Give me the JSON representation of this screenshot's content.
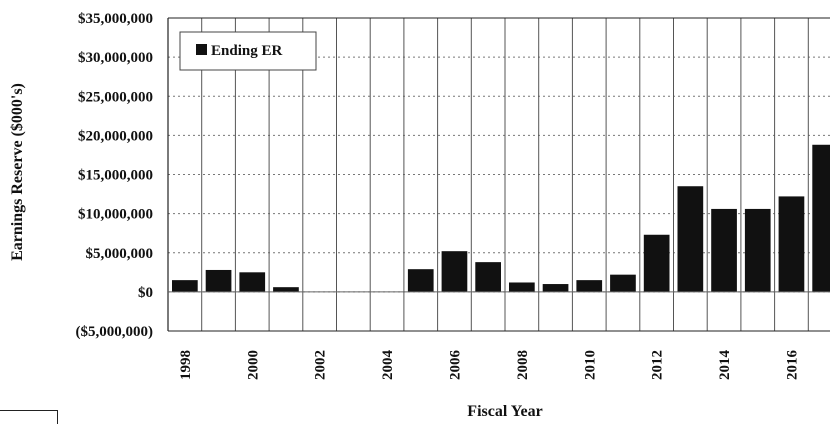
{
  "chart_data": {
    "type": "bar",
    "xlabel": "Fiscal Year",
    "ylabel": "Earnings Reserve ($000's)",
    "ylim": [
      -5000000,
      35000000
    ],
    "yticks": [
      35000000,
      30000000,
      25000000,
      20000000,
      15000000,
      10000000,
      5000000,
      0,
      -5000000
    ],
    "ytick_labels": [
      "$35,000,000",
      "$30,000,000",
      "$25,000,000",
      "$20,000,000",
      "$15,000,000",
      "$10,000,000",
      "$5,000,000",
      "$0",
      "($5,000,000)"
    ],
    "categories": [
      "1998",
      "1999",
      "2000",
      "2001",
      "2002",
      "2003",
      "2004",
      "2005",
      "2006",
      "2007",
      "2008",
      "2009",
      "2010",
      "2011",
      "2012",
      "2013",
      "2014",
      "2015",
      "2016",
      "2017"
    ],
    "xtick_labels": [
      "1998",
      "",
      "2000",
      "",
      "2002",
      "",
      "2004",
      "",
      "2006",
      "",
      "2008",
      "",
      "2010",
      "",
      "2012",
      "",
      "2014",
      "",
      "2016",
      ""
    ],
    "series": [
      {
        "name": "Ending ER",
        "color": "#111111",
        "values": [
          1500000,
          2800000,
          2500000,
          600000,
          0,
          0,
          0,
          2900000,
          5200000,
          3800000,
          1200000,
          1000000,
          1500000,
          2200000,
          7300000,
          13500000,
          10600000,
          10600000,
          12200000,
          18800000
        ]
      }
    ],
    "legend": "top-left",
    "grid": true
  }
}
